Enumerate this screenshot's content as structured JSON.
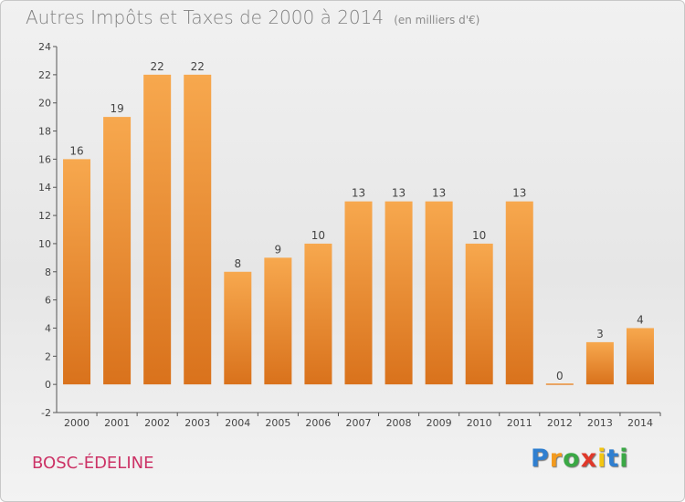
{
  "chart_data": {
    "type": "bar",
    "title": "Autres Impôts et Taxes de 2000 à 2014",
    "unit": "(en milliers d'€)",
    "categories": [
      "2000",
      "2001",
      "2002",
      "2003",
      "2004",
      "2005",
      "2006",
      "2007",
      "2008",
      "2009",
      "2010",
      "2011",
      "2012",
      "2013",
      "2014"
    ],
    "values": [
      16,
      19,
      22,
      22,
      8,
      9,
      10,
      13,
      13,
      13,
      10,
      13,
      0,
      3,
      4
    ],
    "ylim": [
      -2,
      24
    ],
    "yticks": [
      -2,
      0,
      2,
      4,
      6,
      8,
      10,
      12,
      14,
      16,
      18,
      20,
      22,
      24
    ],
    "grid": false,
    "colors": {
      "bar_top": "#f7a84e",
      "bar_bottom": "#d9721c"
    }
  },
  "commune": "BOSC-ÉDELINE",
  "logo": {
    "letters": [
      "P",
      "r",
      "o",
      "x",
      "i",
      "t",
      "i"
    ],
    "colors": [
      "#2f7fd0",
      "#f39a1e",
      "#3aa845",
      "#e0382a",
      "#f2c511",
      "#2f7fd0",
      "#3aa845"
    ]
  }
}
